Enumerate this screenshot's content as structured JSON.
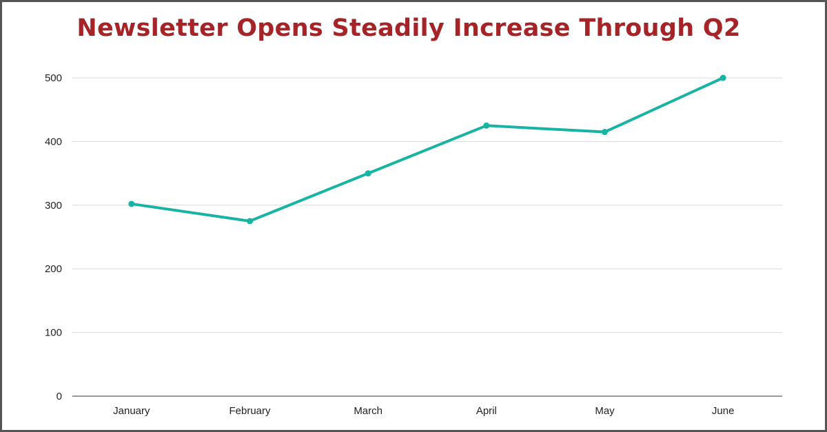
{
  "chart_data": {
    "type": "line",
    "title": "Newsletter Opens Steadily Increase Through Q2",
    "categories": [
      "January",
      "February",
      "March",
      "April",
      "May",
      "June"
    ],
    "series": [
      {
        "values": [
          302,
          275,
          350,
          425,
          415,
          500
        ]
      }
    ],
    "ylim": [
      0,
      500
    ],
    "yticks": [
      0,
      100,
      200,
      300,
      400,
      500
    ],
    "xlabel": "",
    "ylabel": "",
    "grid": true,
    "markers": true,
    "colors": {
      "line": "#17b3a3",
      "title": "#a52428",
      "grid": "#d9d9d9",
      "axis": "#333333"
    }
  }
}
